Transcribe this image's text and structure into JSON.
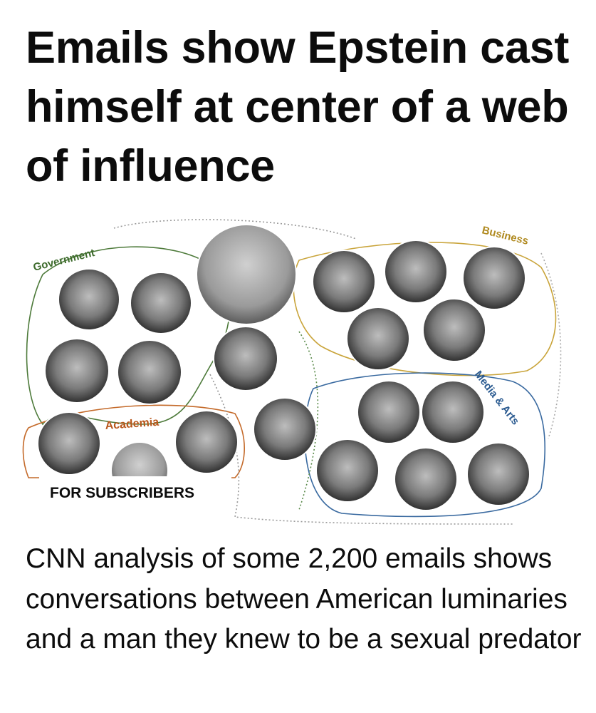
{
  "headline": "Emails show Epstein cast himself at center of a web of influence",
  "image": {
    "labels": {
      "government": "Government",
      "business": "Business",
      "media": "Media & Arts",
      "academia": "Academia"
    },
    "badge": "FOR SUBSCRIBERS"
  },
  "description": "CNN analysis of some 2,200 emails shows conversations between American luminaries and a man they knew to be a sexual predator"
}
